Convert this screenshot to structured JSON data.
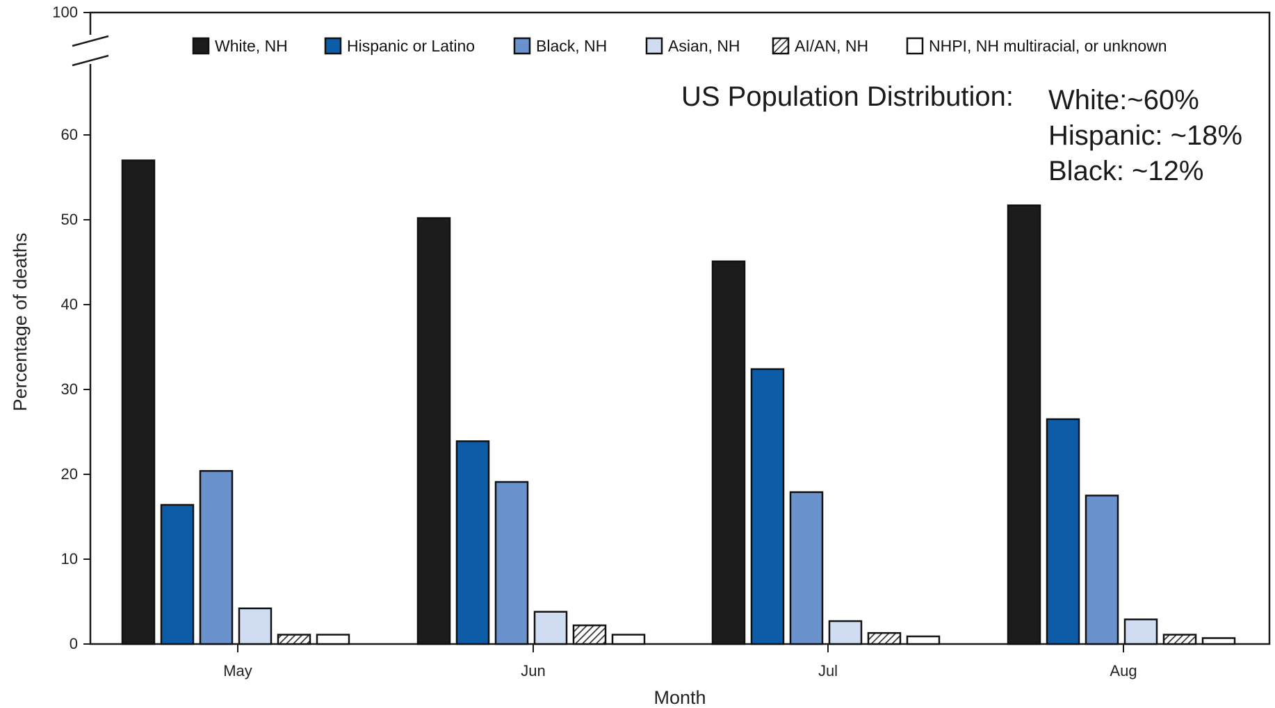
{
  "chart_data": {
    "type": "bar",
    "title": "",
    "xlabel": "Month",
    "ylabel": "Percentage of deaths",
    "categories": [
      "May",
      "Jun",
      "Jul",
      "Aug"
    ],
    "ylim": [
      0,
      100
    ],
    "yticks": [
      0,
      10,
      20,
      30,
      40,
      50,
      60,
      100
    ],
    "axis_break": [
      65,
      100
    ],
    "legend_position": "top",
    "grid": false,
    "series": [
      {
        "name": "White, NH",
        "color": "#1c1c1c",
        "pattern": "solid",
        "values": [
          57.0,
          50.2,
          45.1,
          51.7
        ]
      },
      {
        "name": "Hispanic or Latino",
        "color": "#0c5ca8",
        "pattern": "solid",
        "values": [
          16.4,
          23.9,
          32.4,
          26.5
        ]
      },
      {
        "name": "Black, NH",
        "color": "#6a92cc",
        "pattern": "solid",
        "values": [
          20.4,
          19.1,
          17.9,
          17.5
        ]
      },
      {
        "name": "Asian, NH",
        "color": "#cfdcf1",
        "pattern": "solid",
        "values": [
          4.2,
          3.8,
          2.7,
          2.9
        ]
      },
      {
        "name": "AI/AN, NH",
        "color": "#d8d8d8",
        "pattern": "hatch",
        "values": [
          1.1,
          2.2,
          1.3,
          1.1
        ]
      },
      {
        "name": "NHPI, NH multiracial, or unknown",
        "color": "#ffffff",
        "pattern": "solid",
        "values": [
          1.1,
          1.1,
          0.9,
          0.7
        ]
      }
    ],
    "annotations": {
      "heading": "US Population Distribution:",
      "lines": [
        "White:~60%",
        "Hispanic: ~18%",
        "Black: ~12%"
      ]
    }
  }
}
